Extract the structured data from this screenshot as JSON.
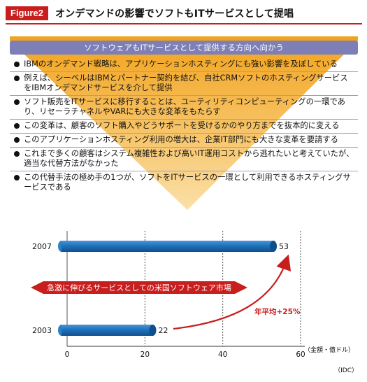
{
  "figure": {
    "tag": "Figure2",
    "title": "オンデマンドの影響でソフトもITサービスとして提唱"
  },
  "banner": "ソフトウェアもITサービスとして提供する方向へ向かう",
  "bullets": [
    "IBMのオンデマンド戦略は、アプリケーションホスティングにも強い影響を及ぼしている",
    "例えば、シーベルはIBMとパートナー契約を結び、自社CRMソフトのホスティングサービスをIBMオンデマンドサービスを介して提供",
    "ソフト販売をITサービスに移行することは、ユーティリティコンピューティングの一環であり、リセーラチャネルやVARにも大きな変革をもたらす",
    "この変革は、顧客のソフト購入やどうサポートを受けるかのやり方までを抜本的に変える",
    "このアプリケーションホスティング利用の増大は、企業IT部門にも大きな変革を要請する",
    "これまで多くの顧客はシステム複雑性および高いIT運用コストから逃れたいと考えていたが、適当な代替方法がなかった",
    "この代替手法の極め手の1つが、ソフトをITサービスの一環として利用できるホスティングサービスである"
  ],
  "colors": {
    "accent_red": "#c81e1e",
    "banner_purple": "#7d7fb6",
    "funnel_orange": "#f0a21a",
    "bar_blue": "#1d6fb8"
  },
  "chart_data": {
    "type": "bar",
    "orientation": "horizontal",
    "categories": [
      "2007",
      "2003"
    ],
    "values": [
      53,
      22
    ],
    "xlim": [
      0,
      60
    ],
    "xticks": [
      0,
      20,
      40,
      60
    ],
    "unit_label": "（金額・億ドル）",
    "annotation_title": "急激に伸びるサービスとしての米国ソフトウェア市場",
    "growth_label": "年平均+25%",
    "source": "（IDC）",
    "grid": "vertical-dashed"
  }
}
